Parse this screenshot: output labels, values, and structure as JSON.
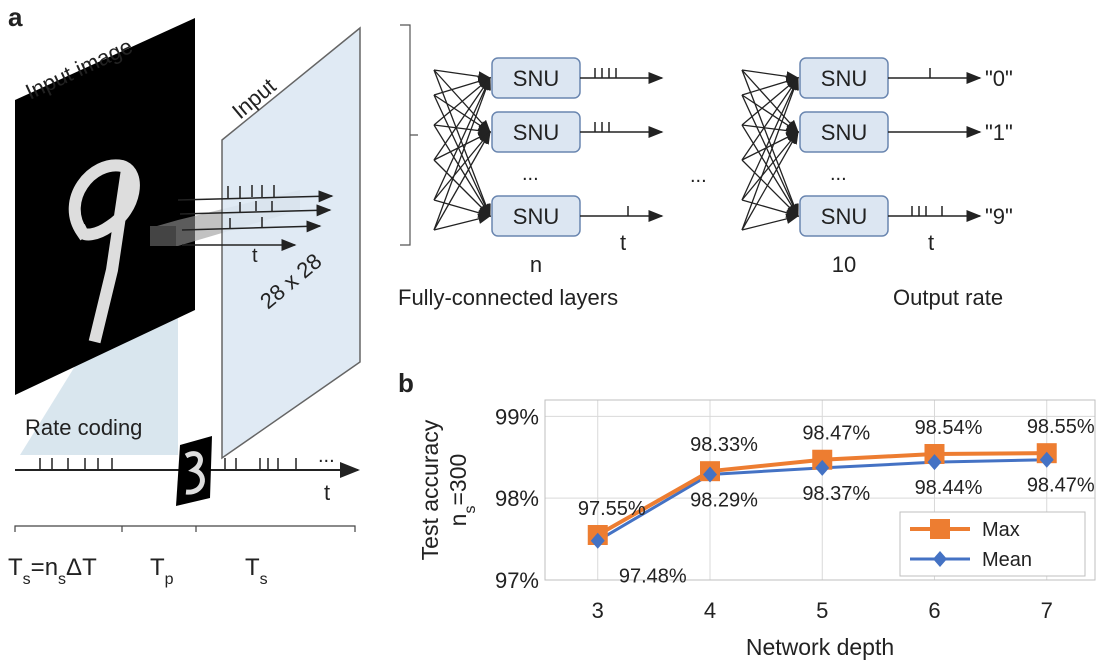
{
  "panel_a": {
    "panel_label": "a",
    "input_image_label": "Input image",
    "input_label": "Input",
    "input_size": "28 x 28",
    "input_time_label": "t",
    "rate_coding_label": "Rate coding",
    "rate_time_label": "t",
    "rate_ellipsis": "...",
    "timing": [
      [
        "T",
        "s",
        "=n",
        "s",
        "ΔT"
      ],
      [
        "T",
        "p"
      ],
      [
        "T",
        "s"
      ]
    ],
    "layers": [
      {
        "units": [
          "SNU",
          "SNU",
          "SNU"
        ],
        "ellipsis": "...",
        "time_label": "t",
        "size": "n"
      },
      {
        "units": [
          "SNU",
          "SNU",
          "SNU"
        ],
        "ellipsis": "...",
        "time_label": "t",
        "size": "10"
      }
    ],
    "between_ellipsis": "...",
    "outputs": [
      "\"0\"",
      "\"1\"",
      "\"9\""
    ],
    "fc_label": "Fully-connected layers",
    "output_rate_label": "Output rate"
  },
  "chart_data": {
    "type": "line",
    "panel_label": "b",
    "xlabel": "Network depth",
    "ylabel": "Test accuracy",
    "ylabel_second_line": [
      "n",
      "s",
      "=300"
    ],
    "x": [
      3,
      4,
      5,
      6,
      7
    ],
    "xlim": [
      2.53,
      7.43
    ],
    "xticks": [
      3,
      4,
      5,
      6,
      7
    ],
    "ylim": [
      97,
      99.2
    ],
    "yticks": [
      {
        "value": 97,
        "label": "97%"
      },
      {
        "value": 98,
        "label": "98%"
      },
      {
        "value": 99,
        "label": "99%"
      }
    ],
    "grid": true,
    "legend": "lower right",
    "series": [
      {
        "name": "Max",
        "color": "#ed7d31",
        "marker": "square",
        "values": [
          97.55,
          98.33,
          98.47,
          98.54,
          98.55
        ],
        "value_labels": [
          "97.55%",
          "98.33%",
          "98.47%",
          "98.54%",
          "98.55%"
        ]
      },
      {
        "name": "Mean",
        "color": "#4472c4",
        "marker": "diamond",
        "values": [
          97.48,
          98.29,
          98.37,
          98.44,
          98.47
        ],
        "value_labels": [
          "97.48%",
          "98.29%",
          "98.37%",
          "98.44%",
          "98.47%"
        ]
      }
    ]
  }
}
